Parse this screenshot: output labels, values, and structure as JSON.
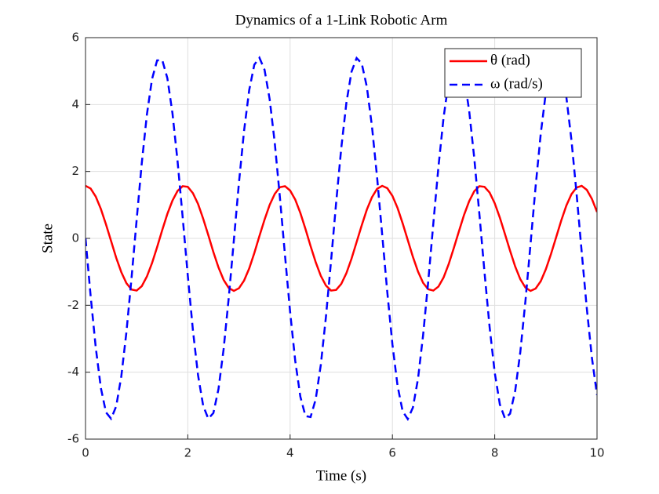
{
  "chart_data": {
    "type": "line",
    "title": "Dynamics of a 1-Link Robotic Arm",
    "x_label": "Time (s)",
    "y_label": "State",
    "x": [
      0,
      0.1,
      0.2,
      0.3,
      0.4,
      0.5,
      0.6,
      0.7,
      0.8,
      0.9,
      1,
      1.1,
      1.2,
      1.3,
      1.4,
      1.5,
      1.6,
      1.7,
      1.8,
      1.9,
      2,
      2.1,
      2.2,
      2.3,
      2.4,
      2.5,
      2.6,
      2.7,
      2.8,
      2.9,
      3,
      3.1,
      3.2,
      3.3,
      3.4,
      3.5,
      3.6,
      3.7,
      3.8,
      3.9,
      4,
      4.1,
      4.2,
      4.3,
      4.4,
      4.5,
      4.6,
      4.7,
      4.8,
      4.9,
      5,
      5.1,
      5.2,
      5.3,
      5.4,
      5.5,
      5.6,
      5.7,
      5.8,
      5.9,
      6,
      6.1,
      6.2,
      6.3,
      6.4,
      6.5,
      6.6,
      6.7,
      6.8,
      6.9,
      7,
      7.1,
      7.2,
      7.3,
      7.4,
      7.5,
      7.6,
      7.7,
      7.8,
      7.9,
      8,
      8.1,
      8.2,
      8.3,
      8.4,
      8.5,
      8.6,
      8.7,
      8.8,
      8.9,
      9,
      9.1,
      9.2,
      9.3,
      9.4,
      9.5,
      9.6,
      9.7,
      9.8,
      9.9,
      10
    ],
    "series": [
      {
        "name": "θ (rad)",
        "color": "#ff0000",
        "dash": false,
        "values": [
          1.57,
          1.49,
          1.25,
          0.88,
          0.42,
          -0.08,
          -0.58,
          -1.01,
          -1.34,
          -1.53,
          -1.56,
          -1.43,
          -1.14,
          -0.74,
          -0.26,
          0.25,
          0.73,
          1.13,
          1.42,
          1.56,
          1.54,
          1.35,
          1.03,
          0.59,
          0.1,
          -0.41,
          -0.87,
          -1.24,
          -1.48,
          -1.57,
          -1.49,
          -1.26,
          -0.9,
          -0.44,
          0.07,
          0.56,
          1,
          1.33,
          1.53,
          1.56,
          1.43,
          1.16,
          0.76,
          0.28,
          -0.23,
          -0.71,
          -1.12,
          -1.41,
          -1.56,
          -1.54,
          -1.36,
          -1.04,
          -0.61,
          -0.11,
          0.39,
          0.86,
          1.23,
          1.48,
          1.57,
          1.5,
          1.27,
          0.91,
          0.45,
          -0.05,
          -0.55,
          -0.99,
          -1.33,
          -1.52,
          -1.56,
          -1.44,
          -1.17,
          -0.77,
          -0.29,
          0.21,
          0.7,
          1.11,
          1.41,
          1.56,
          1.54,
          1.37,
          1.05,
          0.62,
          0.13,
          -0.37,
          -0.84,
          -1.22,
          -1.47,
          -1.57,
          -1.5,
          -1.28,
          -0.92,
          -0.47,
          0.03,
          0.53,
          0.98,
          1.32,
          1.52,
          1.57,
          1.45,
          1.18,
          0.79
        ]
      },
      {
        "name": "ω (rad/s)",
        "color": "#0000ff",
        "dash": true,
        "values": [
          0,
          -1.72,
          -3.26,
          -4.47,
          -5.2,
          -5.39,
          -5.02,
          -4.12,
          -2.8,
          -1.18,
          0.56,
          2.25,
          3.7,
          4.76,
          5.32,
          5.33,
          4.79,
          3.74,
          2.3,
          0.62,
          -1.12,
          -2.75,
          -4.09,
          -5,
          -5.39,
          -5.22,
          -4.5,
          -3.31,
          -1.78,
          -0.06,
          1.67,
          3.22,
          4.43,
          5.19,
          5.4,
          5.04,
          4.16,
          2.85,
          1.23,
          -0.51,
          -2.2,
          -3.66,
          -4.73,
          -5.31,
          -5.34,
          -4.81,
          -3.78,
          -2.35,
          -0.68,
          1.07,
          2.7,
          4.05,
          4.98,
          5.39,
          5.23,
          4.53,
          3.35,
          1.83,
          0.11,
          -1.61,
          -3.17,
          -4.4,
          -5.17,
          -5.4,
          -5.06,
          -4.2,
          -2.89,
          -1.29,
          0.45,
          2.14,
          3.61,
          4.7,
          5.3,
          5.35,
          4.84,
          3.82,
          2.4,
          0.73,
          -1.01,
          -2.65,
          -4.01,
          -4.96,
          -5.38,
          -5.24,
          -4.56,
          -3.4,
          -1.88,
          -0.17,
          1.56,
          3.13,
          4.37,
          5.15,
          5.4,
          5.08,
          4.23,
          2.94,
          1.34,
          -0.4,
          -2.09,
          -3.57,
          -4.68
        ]
      }
    ],
    "xlim": [
      0,
      10
    ],
    "xticks": [
      0,
      2,
      4,
      6,
      8,
      10
    ],
    "ylim": [
      -6,
      6
    ],
    "yticks": [
      6,
      4,
      2,
      0,
      -2,
      -4,
      -6
    ],
    "grid": true,
    "legend": "upper right"
  }
}
